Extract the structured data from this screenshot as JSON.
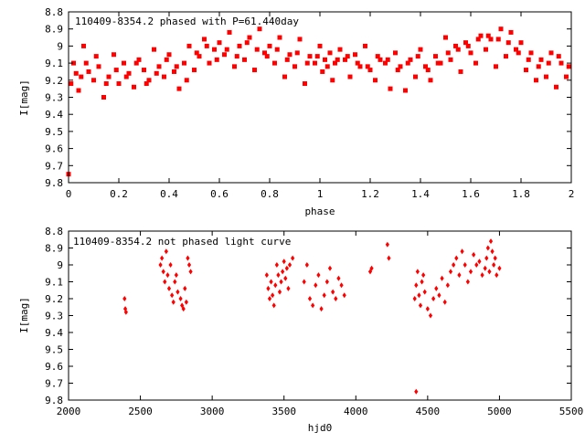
{
  "colors": {
    "points": "#ff0000",
    "axes": "#000000",
    "background": "#ffffff"
  },
  "chart_data": [
    {
      "type": "scatter",
      "title": "110409-8354.2 phased with P=61.440day",
      "xlabel": "phase",
      "ylabel": "I[mag]",
      "xlim": [
        0,
        2
      ],
      "ylim": [
        8.8,
        9.8
      ],
      "y_inverted": true,
      "x_ticks": [
        "0",
        "0.2",
        "0.4",
        "0.6",
        "0.8",
        "1",
        "1.2",
        "1.4",
        "1.6",
        "1.8",
        "2"
      ],
      "y_ticks": [
        "8.8",
        "8.9",
        "9",
        "9.1",
        "9.2",
        "9.3",
        "9.4",
        "9.5",
        "9.6",
        "9.7",
        "9.8"
      ],
      "grid": false,
      "legend": "none",
      "marker": "filled-square",
      "series": [
        {
          "x": [
            0.0,
            0.01,
            0.02,
            0.04,
            0.05,
            0.06,
            0.08,
            0.1,
            0.12,
            0.14,
            0.16,
            0.18,
            0.2,
            0.22,
            0.24,
            0.26,
            0.28,
            0.3,
            0.32,
            0.34,
            0.36,
            0.38,
            0.4,
            0.42,
            0.44,
            0.46,
            0.48,
            0.5,
            0.52,
            0.54,
            0.56,
            0.58,
            0.6,
            0.62,
            0.64,
            0.66,
            0.68,
            0.7,
            0.72,
            0.74,
            0.76,
            0.78,
            0.8,
            0.82,
            0.84,
            0.86,
            0.88,
            0.9,
            0.92,
            0.94,
            0.96,
            0.98,
            1.0,
            1.01,
            1.02,
            1.04,
            1.05,
            1.06,
            1.08,
            1.1,
            1.12,
            1.14,
            1.16,
            1.18,
            1.2,
            1.22,
            1.24,
            1.26,
            1.28,
            1.3,
            1.32,
            1.34,
            1.36,
            1.38,
            1.4,
            1.42,
            1.44,
            1.46,
            1.48,
            1.5,
            1.52,
            1.54,
            1.56,
            1.58,
            1.6,
            1.62,
            1.64,
            1.66,
            1.68,
            1.7,
            1.72,
            1.74,
            1.76,
            1.78,
            1.8,
            1.82,
            1.84,
            1.86,
            1.88,
            1.9,
            1.92,
            1.94,
            1.96,
            1.98,
            0.03,
            0.07,
            0.11,
            0.15,
            0.19,
            0.23,
            0.27,
            0.31,
            0.35,
            0.39,
            0.43,
            0.47,
            0.51,
            0.55,
            0.59,
            0.63,
            0.67,
            0.71,
            0.75,
            0.79,
            0.83,
            0.87,
            0.91,
            0.95,
            0.99,
            1.03,
            1.07,
            1.11,
            1.15,
            1.19,
            1.23,
            1.27,
            1.31,
            1.35,
            1.39,
            1.43,
            1.47,
            1.51,
            1.55,
            1.59,
            1.63,
            1.67,
            1.71,
            1.75,
            1.79,
            1.83,
            1.87,
            1.91,
            1.95,
            1.99
          ],
          "y": [
            9.75,
            9.22,
            9.1,
            9.26,
            9.18,
            9.0,
            9.15,
            9.2,
            9.12,
            9.3,
            9.18,
            9.05,
            9.22,
            9.1,
            9.16,
            9.24,
            9.08,
            9.14,
            9.2,
            9.02,
            9.12,
            9.18,
            9.05,
            9.15,
            9.25,
            9.1,
            9.0,
            9.14,
            9.06,
            8.96,
            9.1,
            9.02,
            8.98,
            9.05,
            8.92,
            9.12,
            9.0,
            9.08,
            8.95,
            9.14,
            8.9,
            9.04,
            9.0,
            9.1,
            8.95,
            9.18,
            9.05,
            9.12,
            8.96,
            9.22,
            9.06,
            9.1,
            9.0,
            9.15,
            9.08,
            9.04,
            9.2,
            9.1,
            9.02,
            9.08,
            9.18,
            9.05,
            9.12,
            9.0,
            9.14,
            9.2,
            9.08,
            9.1,
            9.25,
            9.04,
            9.12,
            9.26,
            9.08,
            9.18,
            9.02,
            9.12,
            9.2,
            9.06,
            9.1,
            8.95,
            9.08,
            9.0,
            9.15,
            8.98,
            9.04,
            9.1,
            8.94,
            9.02,
            8.96,
            9.12,
            8.9,
            9.06,
            8.92,
            9.02,
            8.98,
            9.14,
            9.04,
            9.2,
            9.08,
            9.18,
            9.04,
            9.24,
            9.1,
            9.18,
            9.16,
            9.1,
            9.06,
            9.22,
            9.14,
            9.18,
            9.1,
            9.22,
            9.16,
            9.08,
            9.12,
            9.2,
            9.04,
            9.0,
            9.08,
            9.02,
            9.06,
            8.98,
            9.02,
            9.06,
            9.02,
            9.08,
            9.04,
            9.1,
            9.06,
            9.12,
            9.08,
            9.06,
            9.1,
            9.12,
            9.06,
            9.08,
            9.14,
            9.1,
            9.06,
            9.14,
            9.1,
            9.04,
            9.02,
            9.0,
            8.96,
            8.94,
            8.96,
            8.98,
            9.04,
            9.08,
            9.12,
            9.1,
            9.06,
            9.12
          ]
        }
      ]
    },
    {
      "type": "scatter",
      "title": "110409-8354.2 not phased light curve",
      "xlabel": "hjd0",
      "ylabel": "I[mag]",
      "xlim": [
        2000,
        5500
      ],
      "ylim": [
        8.8,
        9.8
      ],
      "y_inverted": true,
      "x_ticks": [
        "2000",
        "2500",
        "3000",
        "3500",
        "4000",
        "4500",
        "5000",
        "5500"
      ],
      "y_ticks": [
        "8.8",
        "8.9",
        "9",
        "9.1",
        "9.2",
        "9.3",
        "9.4",
        "9.5",
        "9.6",
        "9.7",
        "9.8"
      ],
      "grid": false,
      "legend": "none",
      "marker": "small-diamond",
      "series": [
        {
          "x": [
            2390,
            2395,
            2400,
            2640,
            2650,
            2660,
            2670,
            2680,
            2690,
            2700,
            2710,
            2720,
            2730,
            2740,
            2750,
            2760,
            2780,
            2790,
            2800,
            2810,
            2820,
            2830,
            2840,
            2850,
            3380,
            3390,
            3400,
            3410,
            3420,
            3430,
            3440,
            3450,
            3460,
            3470,
            3480,
            3490,
            3500,
            3510,
            3520,
            3530,
            3540,
            3560,
            3640,
            3660,
            3680,
            3700,
            3720,
            3740,
            3760,
            3780,
            3800,
            3820,
            3840,
            3860,
            3880,
            3900,
            3920,
            4100,
            4110,
            4220,
            4230,
            4410,
            4420,
            4430,
            4440,
            4450,
            4460,
            4470,
            4480,
            4500,
            4520,
            4540,
            4560,
            4580,
            4600,
            4620,
            4640,
            4660,
            4680,
            4700,
            4720,
            4740,
            4760,
            4780,
            4800,
            4820,
            4840,
            4860,
            4880,
            4900,
            4910,
            4920,
            4930,
            4940,
            4950,
            4960,
            4970,
            4980,
            5000,
            4420
          ],
          "y": [
            9.2,
            9.26,
            9.28,
            9.0,
            8.96,
            9.04,
            9.1,
            8.92,
            9.06,
            9.14,
            9.0,
            9.18,
            9.22,
            9.1,
            9.06,
            9.16,
            9.2,
            9.24,
            9.26,
            9.14,
            9.22,
            8.96,
            9.0,
            9.04,
            9.06,
            9.14,
            9.2,
            9.1,
            9.18,
            9.24,
            9.12,
            9.0,
            9.06,
            9.16,
            9.1,
            9.04,
            8.98,
            9.08,
            9.02,
            9.14,
            9.0,
            8.96,
            9.1,
            9.0,
            9.2,
            9.24,
            9.12,
            9.06,
            9.26,
            9.18,
            9.1,
            9.02,
            9.16,
            9.2,
            9.08,
            9.12,
            9.18,
            9.04,
            9.02,
            8.88,
            8.96,
            9.2,
            9.12,
            9.04,
            9.18,
            9.24,
            9.1,
            9.06,
            9.16,
            9.26,
            9.3,
            9.2,
            9.14,
            9.18,
            9.08,
            9.22,
            9.12,
            9.04,
            9.0,
            8.96,
            9.06,
            8.92,
            9.0,
            9.1,
            9.04,
            8.94,
            9.0,
            8.98,
            9.06,
            9.02,
            8.96,
            8.9,
            9.04,
            8.86,
            8.92,
            9.0,
            8.96,
            9.06,
            9.02,
            9.75
          ]
        }
      ]
    }
  ]
}
